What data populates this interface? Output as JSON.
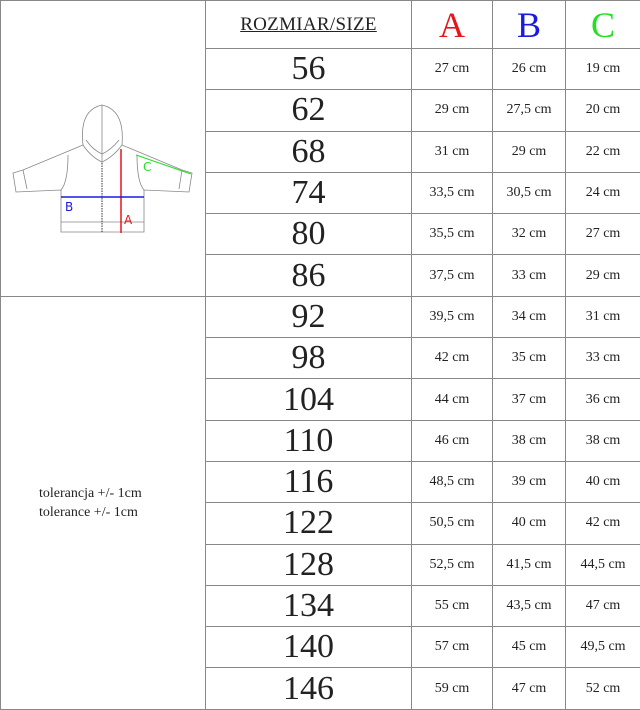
{
  "header": {
    "size_label": "ROZMIAR/SIZE",
    "col_a": "A",
    "col_b": "B",
    "col_c": "C"
  },
  "colors": {
    "a": "#e8141b",
    "b": "#1a1ae0",
    "c": "#22e022"
  },
  "diagram": {
    "label_a": "A",
    "label_b": "B",
    "label_c": "C"
  },
  "tolerance": {
    "line1": "tolerancja +/- 1cm",
    "line2": "tolerance +/- 1cm"
  },
  "rows": [
    {
      "size": "56",
      "a": "27 cm",
      "b": "26 cm",
      "c": "19 cm"
    },
    {
      "size": "62",
      "a": "29 cm",
      "b": "27,5 cm",
      "c": "20 cm"
    },
    {
      "size": "68",
      "a": "31 cm",
      "b": "29 cm",
      "c": "22 cm"
    },
    {
      "size": "74",
      "a": "33,5 cm",
      "b": "30,5 cm",
      "c": "24 cm"
    },
    {
      "size": "80",
      "a": "35,5 cm",
      "b": "32 cm",
      "c": "27 cm"
    },
    {
      "size": "86",
      "a": "37,5 cm",
      "b": "33 cm",
      "c": "29 cm"
    },
    {
      "size": "92",
      "a": "39,5 cm",
      "b": "34 cm",
      "c": "31 cm"
    },
    {
      "size": "98",
      "a": "42 cm",
      "b": "35 cm",
      "c": "33 cm"
    },
    {
      "size": "104",
      "a": "44 cm",
      "b": "37 cm",
      "c": "36 cm"
    },
    {
      "size": "110",
      "a": "46 cm",
      "b": "38 cm",
      "c": "38 cm"
    },
    {
      "size": "116",
      "a": "48,5 cm",
      "b": "39 cm",
      "c": "40 cm"
    },
    {
      "size": "122",
      "a": "50,5 cm",
      "b": "40 cm",
      "c": "42 cm"
    },
    {
      "size": "128",
      "a": "52,5 cm",
      "b": "41,5 cm",
      "c": "44,5 cm"
    },
    {
      "size": "134",
      "a": "55 cm",
      "b": "43,5 cm",
      "c": "47 cm"
    },
    {
      "size": "140",
      "a": "57 cm",
      "b": "45 cm",
      "c": "49,5 cm"
    },
    {
      "size": "146",
      "a": "59 cm",
      "b": "47 cm",
      "c": "52 cm"
    }
  ]
}
